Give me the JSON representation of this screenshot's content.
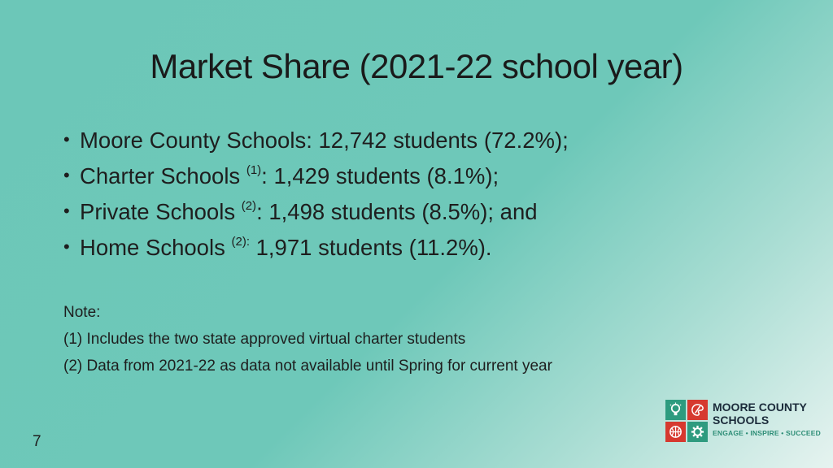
{
  "title": "Market Share (2021-22 school year)",
  "bullets": [
    {
      "text": "Moore County Schools: 12,742 students (72.2%);",
      "sup": "",
      "rest": ""
    },
    {
      "text": "Charter Schools ",
      "sup": "(1)",
      "rest": ": 1,429 students (8.1%);"
    },
    {
      "text": "Private Schools ",
      "sup": "(2)",
      "rest": ": 1,498 students (8.5%); and"
    },
    {
      "text": "Home Schools ",
      "sup": "(2):",
      "rest": " 1,971 students (11.2%)."
    }
  ],
  "notes": {
    "heading": "Note:",
    "items": [
      "(1) Includes the two state approved virtual charter students",
      "(2) Data from 2021-22 as data not available until Spring for current year"
    ]
  },
  "page_number": "7",
  "logo": {
    "line1": "MOORE COUNTY",
    "line2": "SCHOOLS",
    "tagline": "ENGAGE • INSPIRE • SUCCEED",
    "colors": {
      "green": "#2e9b7f",
      "red": "#d6392f",
      "navy": "#1b2b3a"
    }
  }
}
